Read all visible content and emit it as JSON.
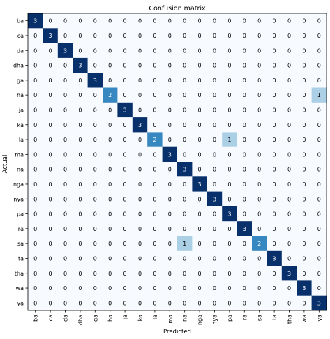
{
  "chart_data": {
    "type": "heatmap",
    "title": "Confusion matrix",
    "xlabel": "Predicted",
    "ylabel": "Actual",
    "labels": [
      "ba",
      "ca",
      "da",
      "dha",
      "ga",
      "ha",
      "ja",
      "ka",
      "la",
      "ma",
      "na",
      "nga",
      "nya",
      "pa",
      "ra",
      "sa",
      "ta",
      "tha",
      "wa",
      "ya"
    ],
    "matrix": [
      [
        3,
        0,
        0,
        0,
        0,
        0,
        0,
        0,
        0,
        0,
        0,
        0,
        0,
        0,
        0,
        0,
        0,
        0,
        0,
        0
      ],
      [
        0,
        3,
        0,
        0,
        0,
        0,
        0,
        0,
        0,
        0,
        0,
        0,
        0,
        0,
        0,
        0,
        0,
        0,
        0,
        0
      ],
      [
        0,
        0,
        3,
        0,
        0,
        0,
        0,
        0,
        0,
        0,
        0,
        0,
        0,
        0,
        0,
        0,
        0,
        0,
        0,
        0
      ],
      [
        0,
        0,
        0,
        3,
        0,
        0,
        0,
        0,
        0,
        0,
        0,
        0,
        0,
        0,
        0,
        0,
        0,
        0,
        0,
        0
      ],
      [
        0,
        0,
        0,
        0,
        3,
        0,
        0,
        0,
        0,
        0,
        0,
        0,
        0,
        0,
        0,
        0,
        0,
        0,
        0,
        0
      ],
      [
        0,
        0,
        0,
        0,
        0,
        2,
        0,
        0,
        0,
        0,
        0,
        0,
        0,
        0,
        0,
        0,
        0,
        0,
        0,
        1
      ],
      [
        0,
        0,
        0,
        0,
        0,
        0,
        3,
        0,
        0,
        0,
        0,
        0,
        0,
        0,
        0,
        0,
        0,
        0,
        0,
        0
      ],
      [
        0,
        0,
        0,
        0,
        0,
        0,
        0,
        3,
        0,
        0,
        0,
        0,
        0,
        0,
        0,
        0,
        0,
        0,
        0,
        0
      ],
      [
        0,
        0,
        0,
        0,
        0,
        0,
        0,
        0,
        2,
        0,
        0,
        0,
        0,
        1,
        0,
        0,
        0,
        0,
        0,
        0
      ],
      [
        0,
        0,
        0,
        0,
        0,
        0,
        0,
        0,
        0,
        3,
        0,
        0,
        0,
        0,
        0,
        0,
        0,
        0,
        0,
        0
      ],
      [
        0,
        0,
        0,
        0,
        0,
        0,
        0,
        0,
        0,
        0,
        3,
        0,
        0,
        0,
        0,
        0,
        0,
        0,
        0,
        0
      ],
      [
        0,
        0,
        0,
        0,
        0,
        0,
        0,
        0,
        0,
        0,
        0,
        3,
        0,
        0,
        0,
        0,
        0,
        0,
        0,
        0
      ],
      [
        0,
        0,
        0,
        0,
        0,
        0,
        0,
        0,
        0,
        0,
        0,
        0,
        3,
        0,
        0,
        0,
        0,
        0,
        0,
        0
      ],
      [
        0,
        0,
        0,
        0,
        0,
        0,
        0,
        0,
        0,
        0,
        0,
        0,
        0,
        3,
        0,
        0,
        0,
        0,
        0,
        0
      ],
      [
        0,
        0,
        0,
        0,
        0,
        0,
        0,
        0,
        0,
        0,
        0,
        0,
        0,
        0,
        3,
        0,
        0,
        0,
        0,
        0
      ],
      [
        0,
        0,
        0,
        0,
        0,
        0,
        0,
        0,
        0,
        0,
        1,
        0,
        0,
        0,
        0,
        2,
        0,
        0,
        0,
        0
      ],
      [
        0,
        0,
        0,
        0,
        0,
        0,
        0,
        0,
        0,
        0,
        0,
        0,
        0,
        0,
        0,
        0,
        3,
        0,
        0,
        0
      ],
      [
        0,
        0,
        0,
        0,
        0,
        0,
        0,
        0,
        0,
        0,
        0,
        0,
        0,
        0,
        0,
        0,
        0,
        3,
        0,
        0
      ],
      [
        0,
        0,
        0,
        0,
        0,
        0,
        0,
        0,
        0,
        0,
        0,
        0,
        0,
        0,
        0,
        0,
        0,
        0,
        3,
        0
      ],
      [
        0,
        0,
        0,
        0,
        0,
        0,
        0,
        0,
        0,
        0,
        0,
        0,
        0,
        0,
        0,
        0,
        0,
        0,
        0,
        3
      ]
    ],
    "value_range": [
      0,
      3
    ],
    "colormap": "Blues",
    "grid": false
  }
}
